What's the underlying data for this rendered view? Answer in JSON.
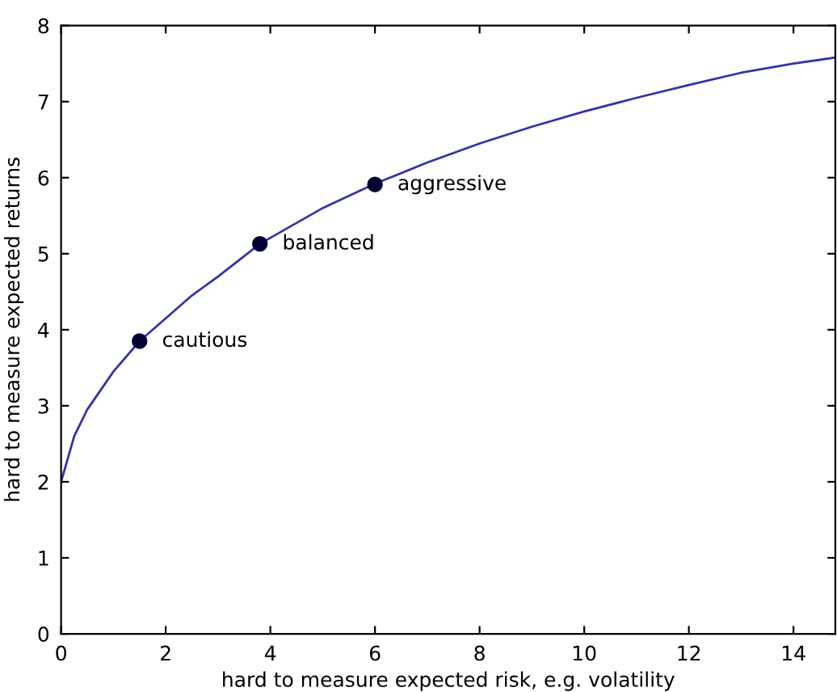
{
  "chart_data": {
    "type": "line",
    "xlabel": "hard to measure expected risk, e.g. volatility",
    "ylabel": "hard to measure expected returns",
    "xlim": [
      0,
      14.8
    ],
    "ylim": [
      0,
      8
    ],
    "xticks": [
      0,
      2,
      4,
      6,
      8,
      10,
      12,
      14
    ],
    "yticks": [
      0,
      1,
      2,
      3,
      4,
      5,
      6,
      7,
      8
    ],
    "grid": false,
    "legend": false,
    "series": [
      {
        "color": "#3333aa",
        "marker": "none",
        "line_style": "solid",
        "x": [
          0,
          0.25,
          0.5,
          1,
          1.5,
          2,
          2.5,
          3,
          3.8,
          5,
          6,
          7,
          8,
          9,
          10,
          11,
          12,
          13,
          14,
          14.8
        ],
        "values": [
          2.0,
          2.6,
          2.95,
          3.45,
          3.85,
          4.15,
          4.45,
          4.7,
          5.13,
          5.6,
          5.92,
          6.2,
          6.45,
          6.67,
          6.87,
          7.05,
          7.22,
          7.38,
          7.5,
          7.58
        ]
      },
      {
        "type": "scatter",
        "color": "#000033",
        "marker": "circle",
        "x": [
          1.5,
          3.8,
          6.0
        ],
        "values": [
          3.85,
          5.13,
          5.91
        ]
      }
    ],
    "annotations": [
      {
        "text": "cautious",
        "x": 1.5,
        "y": 3.85
      },
      {
        "text": "balanced",
        "x": 3.8,
        "y": 5.13
      },
      {
        "text": "aggressive",
        "x": 6.0,
        "y": 5.91
      }
    ]
  }
}
